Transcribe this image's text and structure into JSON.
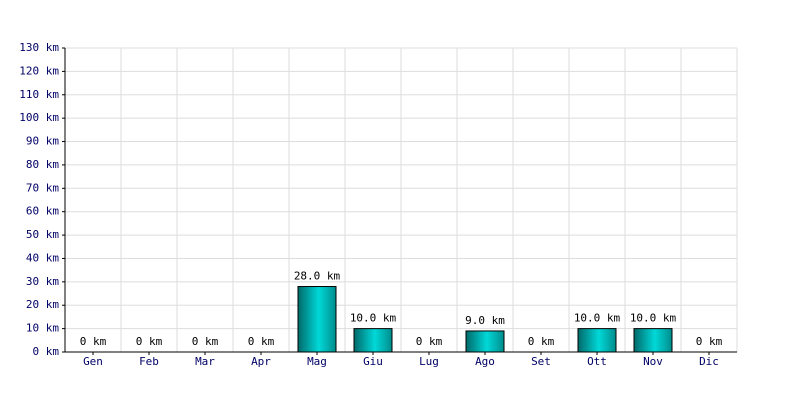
{
  "chart_data": {
    "type": "bar",
    "categories": [
      "Gen",
      "Feb",
      "Mar",
      "Apr",
      "Mag",
      "Giu",
      "Lug",
      "Ago",
      "Set",
      "Ott",
      "Nov",
      "Dic"
    ],
    "values": [
      0,
      0,
      0,
      0,
      28,
      10,
      0,
      9,
      0,
      10,
      10,
      0
    ],
    "value_labels": [
      "0 km",
      "0 km",
      "0 km",
      "0 km",
      "28.0 km",
      "10.0 km",
      "0 km",
      "9.0 km",
      "0 km",
      "10.0 km",
      "10.0 km",
      "0 km"
    ],
    "color": "#00d8d8",
    "ylim": [
      0,
      130
    ],
    "yticks": [
      {
        "value": 0,
        "label": "0 km"
      },
      {
        "value": 10,
        "label": "10 km"
      },
      {
        "value": 20,
        "label": "20 km"
      },
      {
        "value": 30,
        "label": "30 km"
      },
      {
        "value": 40,
        "label": "40 km"
      },
      {
        "value": 50,
        "label": "50 km"
      },
      {
        "value": 60,
        "label": "60 km"
      },
      {
        "value": 70,
        "label": "70 km"
      },
      {
        "value": 80,
        "label": "80 km"
      },
      {
        "value": 90,
        "label": "90 km"
      },
      {
        "value": 100,
        "label": "100 km"
      },
      {
        "value": 110,
        "label": "110 km"
      },
      {
        "value": 120,
        "label": "120 km"
      },
      {
        "value": 130,
        "label": "130 km"
      }
    ],
    "grid": true
  }
}
